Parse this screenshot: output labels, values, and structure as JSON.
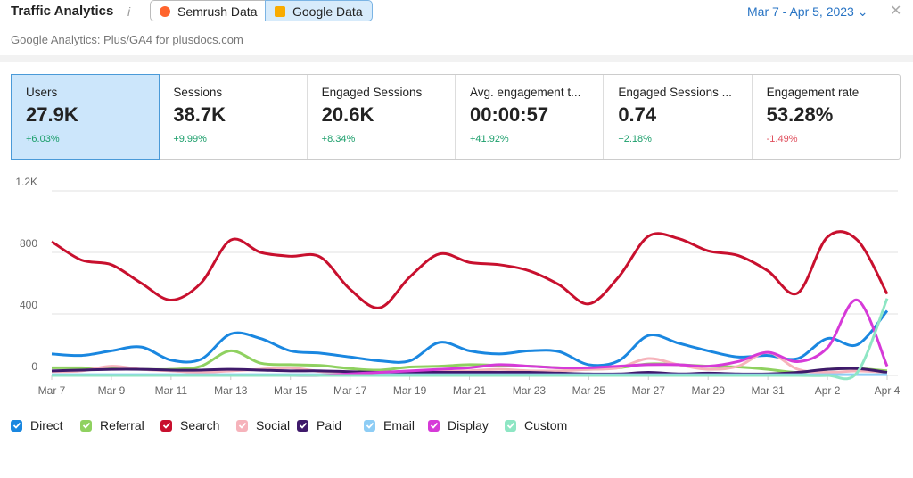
{
  "header": {
    "title": "Traffic Analytics",
    "info": "i",
    "sources": [
      "Semrush Data",
      "Google Data"
    ],
    "date_range": "Mar 7 - Apr 5, 2023",
    "subtitle": "Google Analytics: Plus/GA4 for plusdocs.com"
  },
  "cards": [
    {
      "label": "Users",
      "value": "27.9K",
      "change": "+6.03%"
    },
    {
      "label": "Sessions",
      "value": "38.7K",
      "change": "+9.99%"
    },
    {
      "label": "Engaged Sessions",
      "value": "20.6K",
      "change": "+8.34%"
    },
    {
      "label": "Avg. engagement t...",
      "value": "00:00:57",
      "change": "+41.92%"
    },
    {
      "label": "Engaged Sessions ...",
      "value": "0.74",
      "change": "+2.18%"
    },
    {
      "label": "Engagement rate",
      "value": "53.28%",
      "change": "-1.49%"
    }
  ],
  "chart_data": {
    "type": "line",
    "categories": [
      "Mar 7",
      null,
      "Mar 9",
      null,
      "Mar 11",
      null,
      "Mar 13",
      null,
      "Mar 15",
      null,
      "Mar 17",
      null,
      "Mar 19",
      null,
      "Mar 21",
      null,
      "Mar 23",
      null,
      "Mar 25",
      null,
      "Mar 27",
      null,
      "Mar 29",
      null,
      "Mar 31",
      null,
      "Apr 2",
      null,
      "Apr 4"
    ],
    "ylim": [
      0,
      1200
    ],
    "yticks": [
      0,
      400,
      800,
      {
        "value": 1200,
        "label": "1.2K"
      }
    ],
    "grid": true,
    "series": [
      {
        "name": "Direct",
        "color": "#1a87e0",
        "values": [
          140,
          130,
          160,
          185,
          100,
          105,
          270,
          240,
          160,
          145,
          120,
          95,
          95,
          215,
          160,
          140,
          160,
          155,
          70,
          95,
          260,
          210,
          160,
          120,
          130,
          110,
          240,
          200,
          420
        ]
      },
      {
        "name": "Referral",
        "color": "#8fd160",
        "values": [
          50,
          50,
          45,
          40,
          40,
          60,
          160,
          80,
          70,
          65,
          45,
          35,
          55,
          60,
          70,
          65,
          60,
          50,
          40,
          50,
          75,
          70,
          60,
          55,
          40,
          20,
          40,
          45,
          30
        ]
      },
      {
        "name": "Search",
        "color": "#c8102e",
        "values": [
          870,
          750,
          720,
          600,
          490,
          600,
          880,
          800,
          775,
          770,
          560,
          440,
          640,
          790,
          735,
          720,
          680,
          590,
          465,
          640,
          905,
          890,
          810,
          780,
          680,
          535,
          900,
          880,
          530
        ]
      },
      {
        "name": "Social",
        "color": "#f6b3bb",
        "values": [
          25,
          30,
          60,
          40,
          30,
          20,
          30,
          40,
          50,
          25,
          10,
          10,
          20,
          25,
          30,
          40,
          30,
          30,
          40,
          50,
          110,
          70,
          40,
          60,
          150,
          40,
          20,
          30,
          20
        ]
      },
      {
        "name": "Paid",
        "color": "#3f1a6b",
        "values": [
          30,
          35,
          40,
          40,
          35,
          35,
          40,
          35,
          30,
          30,
          25,
          20,
          20,
          20,
          20,
          20,
          20,
          15,
          10,
          10,
          20,
          10,
          15,
          10,
          10,
          20,
          40,
          45,
          20
        ]
      },
      {
        "name": "Email",
        "color": "#8ecdf5",
        "values": [
          5,
          5,
          5,
          5,
          5,
          5,
          5,
          5,
          5,
          5,
          5,
          5,
          5,
          5,
          5,
          5,
          5,
          5,
          5,
          5,
          5,
          5,
          5,
          5,
          5,
          5,
          5,
          5,
          5
        ]
      },
      {
        "name": "Display",
        "color": "#d63ad8",
        "values": [
          0,
          0,
          0,
          0,
          0,
          0,
          0,
          0,
          0,
          0,
          10,
          20,
          30,
          40,
          50,
          70,
          60,
          50,
          50,
          60,
          70,
          70,
          60,
          90,
          150,
          90,
          180,
          490,
          60
        ]
      },
      {
        "name": "Custom",
        "color": "#8ee6c4",
        "values": [
          0,
          0,
          0,
          0,
          0,
          0,
          0,
          0,
          0,
          0,
          0,
          0,
          0,
          0,
          0,
          0,
          0,
          0,
          0,
          0,
          0,
          0,
          0,
          0,
          0,
          0,
          0,
          20,
          500
        ]
      }
    ]
  }
}
